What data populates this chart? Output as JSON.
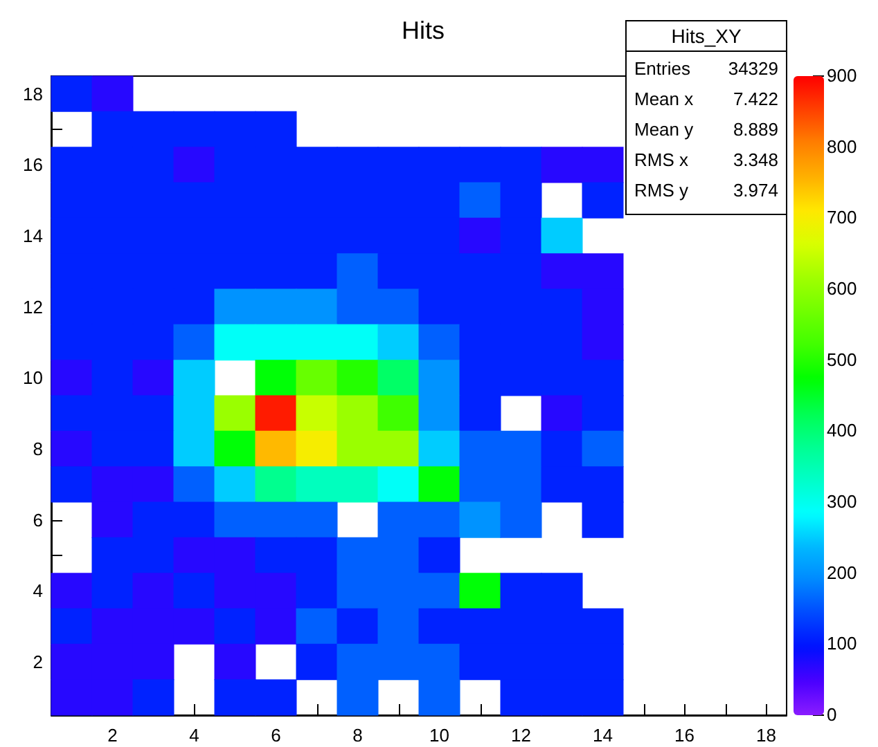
{
  "chart_data": {
    "type": "heatmap",
    "title": "Hits",
    "categories": [
      null,
      "2",
      null,
      "4",
      null,
      "6",
      null,
      "8",
      null,
      "10",
      null,
      "12",
      null,
      "14",
      null,
      "16",
      null,
      "18"
    ],
    "y_categories": [
      "18",
      null,
      "16",
      null,
      "14",
      null,
      "12",
      null,
      "10",
      null,
      "8",
      null,
      "6",
      null,
      "4",
      null,
      "2",
      null
    ],
    "cells": [
      [
        110,
        70,
        null,
        null,
        null,
        null,
        null,
        null,
        null,
        null,
        null,
        null,
        null,
        null,
        null,
        null,
        null,
        null
      ],
      [
        null,
        110,
        110,
        110,
        110,
        110,
        null,
        null,
        null,
        null,
        null,
        null,
        null,
        null,
        null,
        null,
        null,
        null
      ],
      [
        110,
        110,
        110,
        70,
        110,
        110,
        110,
        110,
        110,
        110,
        110,
        110,
        70,
        70,
        null,
        null,
        null,
        null
      ],
      [
        110,
        110,
        110,
        110,
        110,
        110,
        110,
        110,
        110,
        110,
        160,
        110,
        null,
        110,
        null,
        null,
        null,
        null
      ],
      [
        110,
        110,
        110,
        110,
        110,
        110,
        110,
        110,
        110,
        110,
        70,
        110,
        250,
        null,
        null,
        null,
        null,
        null
      ],
      [
        110,
        110,
        110,
        110,
        110,
        110,
        110,
        160,
        110,
        110,
        110,
        110,
        70,
        70,
        null,
        null,
        null,
        null
      ],
      [
        110,
        110,
        110,
        110,
        200,
        200,
        200,
        160,
        160,
        110,
        110,
        110,
        110,
        70,
        null,
        null,
        null,
        null
      ],
      [
        110,
        110,
        110,
        160,
        290,
        290,
        290,
        290,
        250,
        160,
        110,
        110,
        110,
        70,
        null,
        null,
        null,
        null
      ],
      [
        70,
        110,
        70,
        250,
        null,
        470,
        560,
        500,
        410,
        200,
        110,
        110,
        110,
        110,
        null,
        null,
        null,
        null
      ],
      [
        110,
        110,
        110,
        250,
        610,
        880,
        650,
        610,
        520,
        200,
        110,
        null,
        70,
        110,
        null,
        null,
        null,
        null
      ],
      [
        70,
        110,
        110,
        250,
        470,
        750,
        700,
        610,
        610,
        250,
        160,
        160,
        110,
        160,
        null,
        null,
        null,
        null
      ],
      [
        110,
        70,
        70,
        160,
        250,
        380,
        340,
        340,
        290,
        470,
        160,
        160,
        110,
        110,
        null,
        null,
        null,
        null
      ],
      [
        null,
        70,
        110,
        110,
        160,
        160,
        160,
        null,
        160,
        160,
        200,
        160,
        null,
        110,
        null,
        null,
        null,
        null
      ],
      [
        null,
        110,
        110,
        70,
        70,
        110,
        110,
        160,
        160,
        110,
        null,
        null,
        null,
        null,
        null,
        null,
        null,
        null
      ],
      [
        70,
        110,
        70,
        110,
        70,
        70,
        110,
        160,
        160,
        160,
        470,
        110,
        110,
        null,
        null,
        null,
        null,
        null
      ],
      [
        110,
        70,
        70,
        70,
        110,
        70,
        160,
        110,
        160,
        110,
        110,
        110,
        110,
        110,
        null,
        null,
        null,
        null
      ],
      [
        70,
        70,
        70,
        null,
        70,
        null,
        110,
        160,
        160,
        160,
        110,
        110,
        110,
        110,
        null,
        null,
        null,
        null
      ],
      [
        70,
        70,
        110,
        null,
        110,
        110,
        null,
        160,
        null,
        160,
        null,
        110,
        110,
        110,
        null,
        null,
        null,
        null
      ]
    ],
    "clim": [
      0,
      900
    ],
    "cticks": [
      0,
      100,
      200,
      300,
      400,
      500,
      600,
      700,
      800,
      900
    ],
    "annotations": [
      "Hits_XY",
      "Entries",
      "34329",
      "Mean x",
      "7.422",
      "Mean y",
      "8.889",
      "RMS x",
      "3.348",
      "RMS y",
      "3.974"
    ]
  }
}
